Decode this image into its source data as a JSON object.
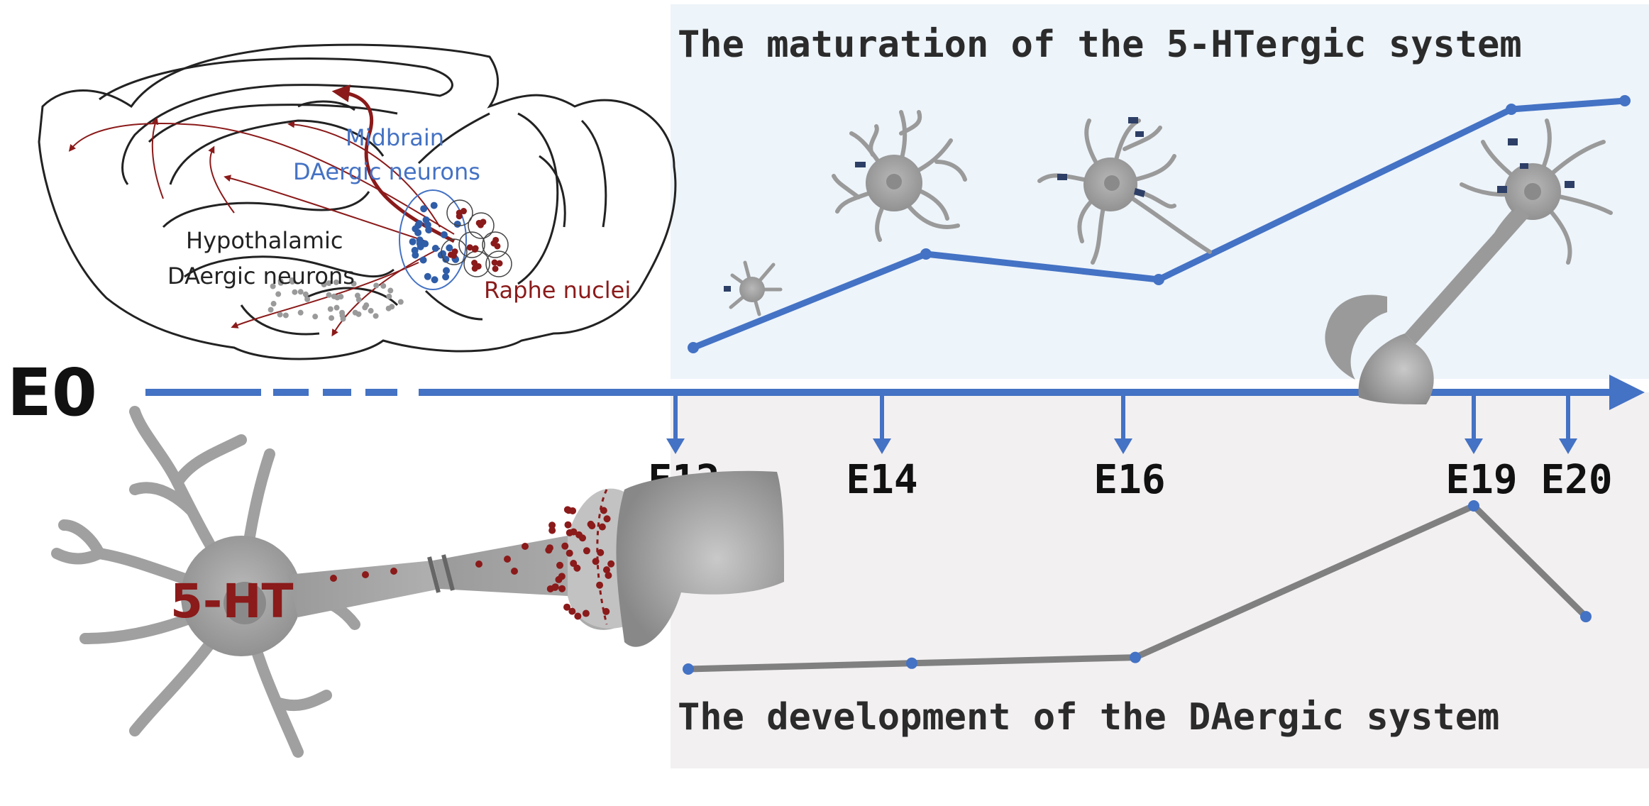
{
  "top_panel": {
    "title": "The maturation of the 5-HTergic system",
    "background": "#edf4fa"
  },
  "bottom_panel": {
    "title": "The development of the DAergic system",
    "background": "#f3f0f1"
  },
  "timeline": {
    "start_label": "E0",
    "color": "#4472c4",
    "stages": [
      "E12",
      "E14",
      "E16",
      "E19",
      "E20"
    ]
  },
  "brain": {
    "midbrain_label_line1": "Midbrain",
    "midbrain_label_line2": "DAergic neurons",
    "hypothalamic_label_line1": "Hypothalamic",
    "hypothalamic_label_line2": "DAergic neurons",
    "raphe_label": "Raphe nuclei",
    "blue": "#4472c4",
    "red": "#8b1a1a"
  },
  "neuron": {
    "label": "5-HT",
    "label_color": "#8b1a1a"
  },
  "chart_data": [
    {
      "type": "line",
      "series": [
        {
          "values": [
            1,
            2.1,
            1.8,
            3.8,
            3.9
          ]
        }
      ],
      "categories": [
        "E12",
        "E14",
        "E16",
        "E19",
        "E20"
      ],
      "color": "#4472c4"
    },
    {
      "type": "line",
      "series": [
        {
          "values": [
            1,
            1.1,
            1.2,
            3.8,
            1.9
          ]
        }
      ],
      "categories": [
        "E12",
        "E14",
        "E16",
        "E19",
        "E20"
      ],
      "color": "#808080"
    }
  ]
}
